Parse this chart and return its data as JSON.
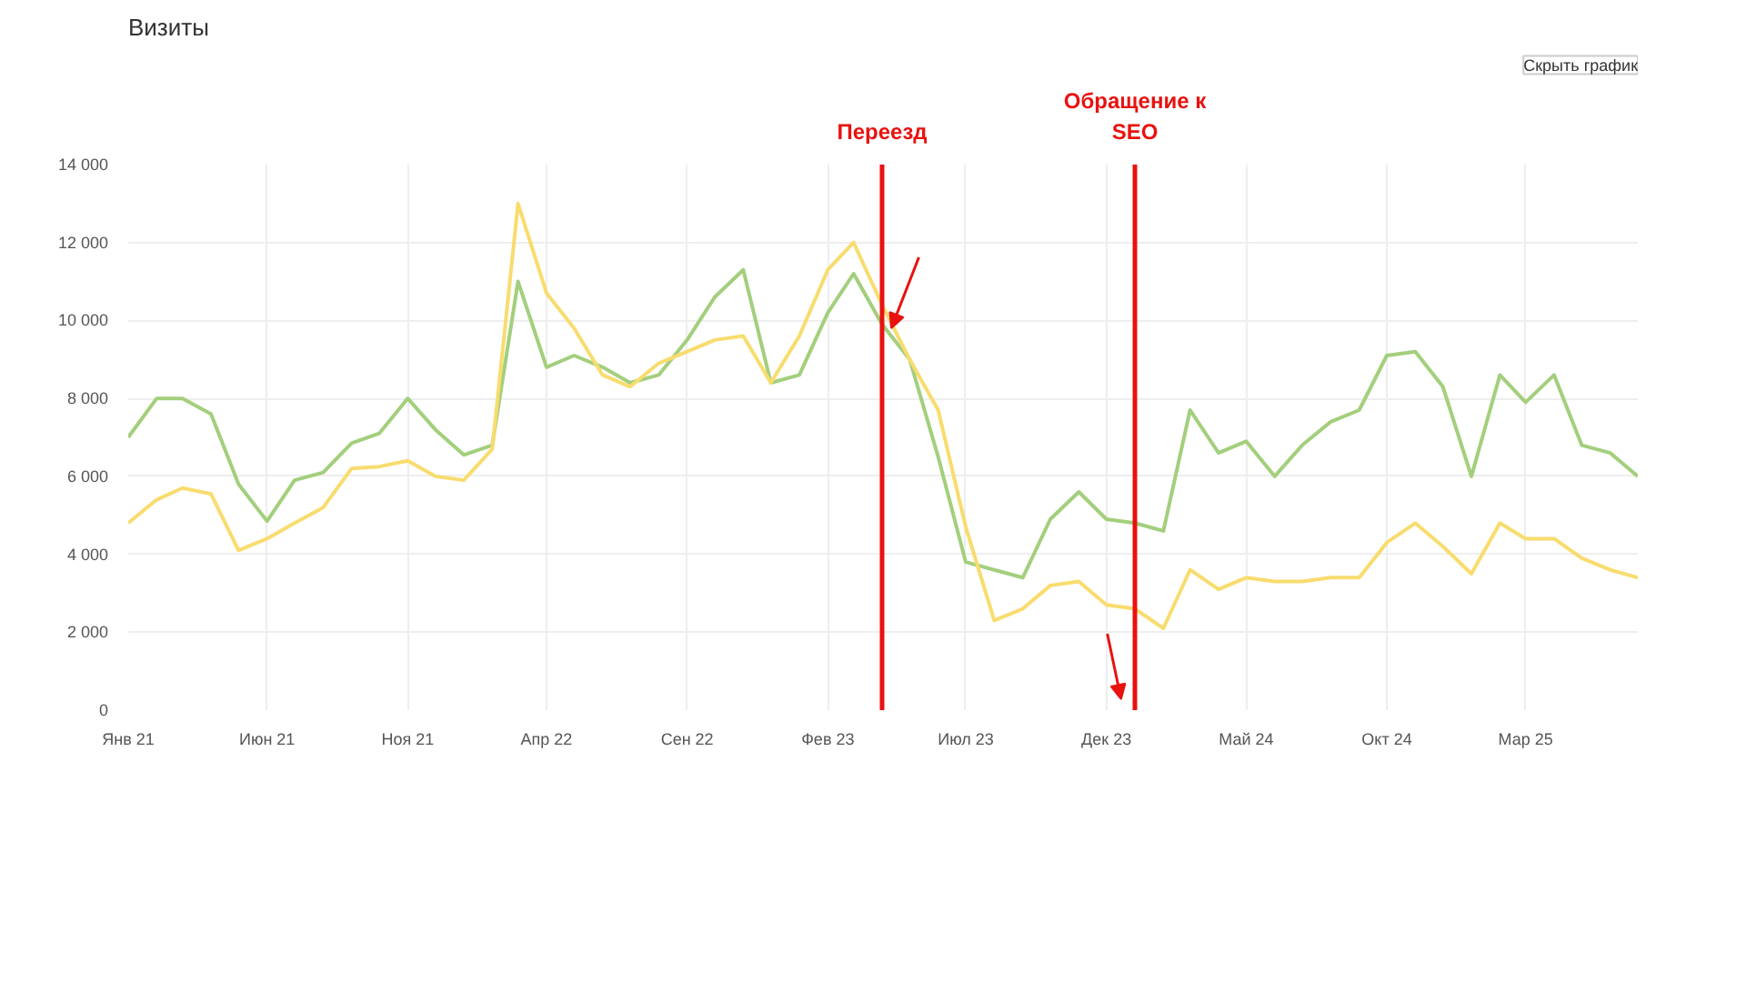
{
  "chart_data": {
    "type": "line",
    "title": "Визиты",
    "x": [
      "2021-01",
      "2021-02",
      "2021-03",
      "2021-04",
      "2021-05",
      "2021-06",
      "2021-07",
      "2021-08",
      "2021-09",
      "2021-10",
      "2021-11",
      "2021-12",
      "2022-01",
      "2022-02",
      "2022-03",
      "2022-04",
      "2022-05",
      "2022-06",
      "2022-07",
      "2022-08",
      "2022-09",
      "2022-10",
      "2022-11",
      "2022-12",
      "2023-01",
      "2023-02",
      "2023-03",
      "2023-04",
      "2023-05",
      "2023-06",
      "2023-07",
      "2023-08",
      "2023-09",
      "2023-10",
      "2023-11",
      "2023-12",
      "2024-01",
      "2024-02",
      "2024-03",
      "2024-04",
      "2024-05",
      "2024-06",
      "2024-07",
      "2024-08",
      "2024-09",
      "2024-10",
      "2024-11",
      "2024-12",
      "2025-01",
      "2025-02",
      "2025-03",
      "2025-04",
      "2025-05",
      "2025-06",
      "2025-07"
    ],
    "series": [
      {
        "color": "#a3cf7c",
        "values": [
          7000,
          8000,
          8000,
          7600,
          5800,
          4850,
          5900,
          6100,
          6850,
          7100,
          8000,
          7200,
          6550,
          6800,
          11000,
          8800,
          9100,
          8800,
          8400,
          8600,
          9500,
          10600,
          11300,
          8400,
          8600,
          10200,
          11200,
          9900,
          9000,
          6500,
          3800,
          3600,
          3400,
          4900,
          5600,
          4900,
          4800,
          4600,
          7700,
          6600,
          6900,
          6000,
          6800,
          7400,
          7700,
          9100,
          9200,
          8300,
          6000,
          8600,
          7900,
          8600,
          6800,
          6600,
          6000
        ]
      },
      {
        "color": "#f8dc6e",
        "values": [
          4800,
          5400,
          5700,
          5550,
          4100,
          4400,
          4800,
          5200,
          6200,
          6250,
          6400,
          6000,
          5900,
          6700,
          13000,
          10700,
          9800,
          8600,
          8300,
          8900,
          9200,
          9500,
          9600,
          8400,
          9600,
          11300,
          12000,
          10400,
          9000,
          7700,
          4700,
          2300,
          2600,
          3200,
          3300,
          2700,
          2600,
          2100,
          3600,
          3100,
          3400,
          3300,
          3300,
          3400,
          3400,
          4300,
          4800,
          4200,
          3500,
          4800,
          4400,
          4400,
          3900,
          3600,
          3400
        ]
      }
    ],
    "xlim": [
      "2021-01",
      "2025-07"
    ],
    "xticks": [
      {
        "value": "2021-01",
        "label": "Янв 21"
      },
      {
        "value": "2021-06",
        "label": "Июн 21"
      },
      {
        "value": "2021-11",
        "label": "Ноя 21"
      },
      {
        "value": "2022-04",
        "label": "Апр 22"
      },
      {
        "value": "2022-09",
        "label": "Сен 22"
      },
      {
        "value": "2023-02",
        "label": "Фев 23"
      },
      {
        "value": "2023-07",
        "label": "Июл 23"
      },
      {
        "value": "2023-12",
        "label": "Дек 23"
      },
      {
        "value": "2024-05",
        "label": "Май 24"
      },
      {
        "value": "2024-10",
        "label": "Окт 24"
      },
      {
        "value": "2025-03",
        "label": "Мар 25"
      }
    ],
    "ylim": [
      0,
      14000
    ],
    "yticks": [
      0,
      {
        "value": 2000,
        "label": "2 000"
      },
      {
        "value": 4000,
        "label": "4 000"
      },
      {
        "value": 6000,
        "label": "6 000"
      },
      {
        "value": 8000,
        "label": "8 000"
      },
      {
        "value": 10000,
        "label": "10 000"
      },
      {
        "value": 12000,
        "label": "12 000"
      },
      {
        "value": 14000,
        "label": "14 000"
      }
    ],
    "ref_lines": [
      {
        "axis": "x",
        "value": "2023-04",
        "label": "Переезд",
        "color": "#e8120f"
      },
      {
        "axis": "x",
        "value": "2024-01",
        "label": "Обращение к\nSEO",
        "color": "#e8120f"
      }
    ],
    "annotations": [
      "Скрыть график"
    ],
    "grid": true,
    "marker": "none",
    "line_style": "solid"
  }
}
